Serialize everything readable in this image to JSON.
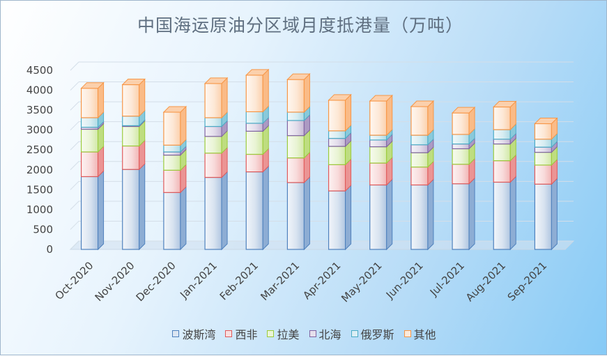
{
  "chart_data": {
    "type": "bar",
    "stacked": true,
    "title": "中国海运原油分区域月度抵港量（万吨）",
    "ylim": [
      0,
      4500
    ],
    "yticks": [
      0,
      500,
      1000,
      1500,
      2000,
      2500,
      3000,
      3500,
      4000,
      4500
    ],
    "grid": true,
    "legend_position": "bottom",
    "categories": [
      "Oct-2020",
      "Nov-2020",
      "Dec-2020",
      "Jan-2021",
      "Feb-2021",
      "Mar-2021",
      "Apr-2021",
      "May-2021",
      "Jun-2021",
      "Jul-2021",
      "Aug-2021",
      "Sep-2021"
    ],
    "series": [
      {
        "name": "波斯湾",
        "color": "#4f81bd",
        "values": [
          1830,
          2010,
          1430,
          1810,
          1950,
          1680,
          1470,
          1620,
          1620,
          1650,
          1690,
          1640
        ]
      },
      {
        "name": "西非",
        "color": "#e05a5a",
        "values": [
          620,
          590,
          560,
          610,
          440,
          620,
          660,
          550,
          450,
          490,
          540,
          480
        ]
      },
      {
        "name": "拉美",
        "color": "#9bcb3b",
        "values": [
          570,
          490,
          380,
          420,
          580,
          560,
          460,
          410,
          360,
          390,
          420,
          320
        ]
      },
      {
        "name": "北海",
        "color": "#8064a2",
        "values": [
          50,
          20,
          80,
          250,
          200,
          380,
          200,
          170,
          200,
          120,
          120,
          130
        ]
      },
      {
        "name": "俄罗斯",
        "color": "#4bacc6",
        "values": [
          240,
          240,
          170,
          220,
          290,
          210,
          190,
          120,
          240,
          240,
          240,
          200
        ]
      },
      {
        "name": "其他",
        "color": "#f79646",
        "values": [
          740,
          790,
          830,
          860,
          920,
          820,
          770,
          860,
          720,
          540,
          570,
          390
        ]
      }
    ]
  }
}
